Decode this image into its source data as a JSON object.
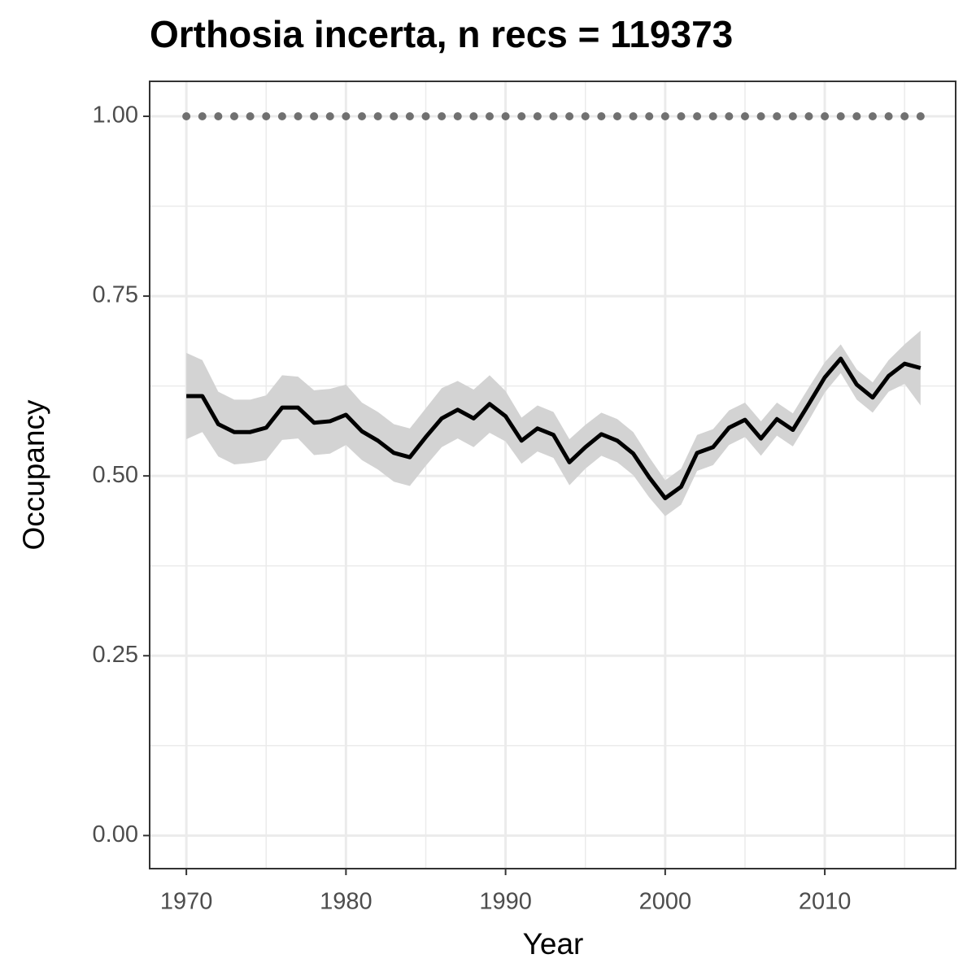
{
  "chart_data": {
    "type": "line",
    "title": "Orthosia incerta, n recs = 119373",
    "x_label": "Year",
    "y_label": "Occupancy",
    "x": [
      1970,
      1971,
      1972,
      1973,
      1974,
      1975,
      1976,
      1977,
      1978,
      1979,
      1980,
      1981,
      1982,
      1983,
      1984,
      1985,
      1986,
      1987,
      1988,
      1989,
      1990,
      1991,
      1992,
      1993,
      1994,
      1995,
      1996,
      1997,
      1998,
      1999,
      2000,
      2001,
      2002,
      2003,
      2004,
      2005,
      2006,
      2007,
      2008,
      2009,
      2010,
      2011,
      2012,
      2013,
      2014,
      2015,
      2016
    ],
    "series": [
      {
        "color": "#000000",
        "values": [
          0.611,
          0.611,
          0.572,
          0.561,
          0.561,
          0.567,
          0.595,
          0.595,
          0.574,
          0.576,
          0.585,
          0.562,
          0.549,
          0.532,
          0.526,
          0.554,
          0.58,
          0.592,
          0.58,
          0.6,
          0.583,
          0.549,
          0.566,
          0.557,
          0.519,
          0.54,
          0.558,
          0.549,
          0.531,
          0.498,
          0.469,
          0.485,
          0.532,
          0.54,
          0.567,
          0.578,
          0.552,
          0.579,
          0.564,
          0.6,
          0.637,
          0.663,
          0.627,
          0.609,
          0.639,
          0.656,
          0.65
        ]
      }
    ],
    "band": {
      "color": "#d3d3d3",
      "upper": [
        0.671,
        0.661,
        0.617,
        0.606,
        0.606,
        0.612,
        0.64,
        0.638,
        0.619,
        0.621,
        0.627,
        0.602,
        0.589,
        0.572,
        0.566,
        0.594,
        0.622,
        0.632,
        0.62,
        0.64,
        0.618,
        0.581,
        0.598,
        0.589,
        0.551,
        0.571,
        0.588,
        0.579,
        0.561,
        0.526,
        0.494,
        0.51,
        0.557,
        0.565,
        0.591,
        0.602,
        0.576,
        0.602,
        0.587,
        0.623,
        0.658,
        0.683,
        0.648,
        0.63,
        0.661,
        0.683,
        0.702
      ],
      "lower": [
        0.551,
        0.561,
        0.527,
        0.516,
        0.518,
        0.522,
        0.55,
        0.552,
        0.529,
        0.531,
        0.543,
        0.522,
        0.509,
        0.492,
        0.486,
        0.514,
        0.54,
        0.552,
        0.54,
        0.56,
        0.548,
        0.517,
        0.534,
        0.525,
        0.487,
        0.51,
        0.528,
        0.519,
        0.501,
        0.47,
        0.444,
        0.46,
        0.507,
        0.515,
        0.543,
        0.554,
        0.528,
        0.556,
        0.541,
        0.577,
        0.616,
        0.643,
        0.606,
        0.588,
        0.617,
        0.628,
        0.598
      ]
    },
    "points": {
      "color": "#707070",
      "values": [
        1,
        1,
        1,
        1,
        1,
        1,
        1,
        1,
        1,
        1,
        1,
        1,
        1,
        1,
        1,
        1,
        1,
        1,
        1,
        1,
        1,
        1,
        1,
        1,
        1,
        1,
        1,
        1,
        1,
        1,
        1,
        1,
        1,
        1,
        1,
        1,
        1,
        1,
        1,
        1,
        1,
        1,
        1,
        1,
        1,
        1,
        1
      ]
    },
    "xlim": [
      1967.7,
      2018.2
    ],
    "ylim": [
      -0.046,
      1.0486
    ],
    "xticks": [
      1970,
      1980,
      1990,
      2000,
      2010
    ],
    "yticks": [
      {
        "value": 0,
        "label": "0.00"
      },
      0.25,
      {
        "value": 0.5,
        "label": "0.50"
      },
      0.75,
      {
        "value": 1,
        "label": "1.00"
      }
    ],
    "x_minor_grid": [
      1975,
      1985,
      1995,
      2005,
      2015
    ],
    "y_minor_grid": [
      0.125,
      0.375,
      0.625,
      0.875
    ],
    "grid": true
  }
}
